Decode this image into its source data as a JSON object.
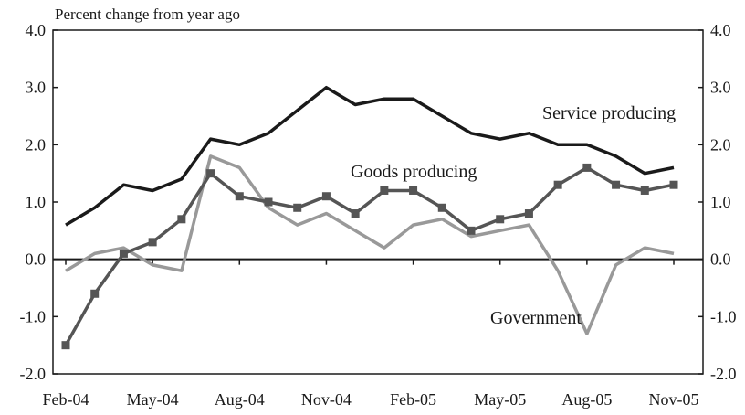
{
  "chart_data": {
    "type": "line",
    "title": "Percent change from year ago",
    "x": [
      "Feb-04",
      "Mar-04",
      "Apr-04",
      "May-04",
      "Jun-04",
      "Jul-04",
      "Aug-04",
      "Sep-04",
      "Oct-04",
      "Nov-04",
      "Dec-04",
      "Jan-05",
      "Feb-05",
      "Mar-05",
      "Apr-05",
      "May-05",
      "Jun-05",
      "Jul-05",
      "Aug-05",
      "Sep-05",
      "Oct-05",
      "Nov-05"
    ],
    "x_tick_labels": [
      "Feb-04",
      "May-04",
      "Aug-04",
      "Nov-04",
      "Feb-05",
      "May-05",
      "Aug-05",
      "Nov-05"
    ],
    "ylim": [
      -2.0,
      4.0
    ],
    "y_tick_labels": [
      "4.0",
      "3.0",
      "2.0",
      "1.0",
      "0.0",
      "-1.0",
      "-2.0"
    ],
    "y_ticks": [
      4.0,
      3.0,
      2.0,
      1.0,
      0.0,
      -1.0,
      -2.0
    ],
    "series": [
      {
        "name": "Service producing",
        "color": "#1a1a1a",
        "marker": "none",
        "values": [
          0.6,
          0.9,
          1.3,
          1.2,
          1.4,
          2.1,
          2.0,
          2.2,
          2.6,
          3.0,
          2.7,
          2.8,
          2.8,
          2.5,
          2.2,
          2.1,
          2.2,
          2.0,
          2.0,
          1.8,
          1.5,
          1.6
        ]
      },
      {
        "name": "Goods producing",
        "color": "#555555",
        "marker": "square",
        "values": [
          -1.5,
          -0.6,
          0.1,
          0.3,
          0.7,
          1.5,
          1.1,
          1.0,
          0.9,
          1.1,
          0.8,
          1.2,
          1.2,
          0.9,
          0.5,
          0.7,
          0.8,
          1.3,
          1.6,
          1.3,
          1.2,
          1.3
        ]
      },
      {
        "name": "Government",
        "color": "#999999",
        "marker": "none",
        "values": [
          -0.2,
          0.1,
          0.2,
          -0.1,
          -0.2,
          1.8,
          1.6,
          0.9,
          0.6,
          0.8,
          0.5,
          0.2,
          0.6,
          0.7,
          0.4,
          0.5,
          0.6,
          -0.2,
          -1.3,
          -0.1,
          0.2,
          0.1
        ]
      }
    ],
    "grid": false,
    "legend": "inline labels"
  }
}
